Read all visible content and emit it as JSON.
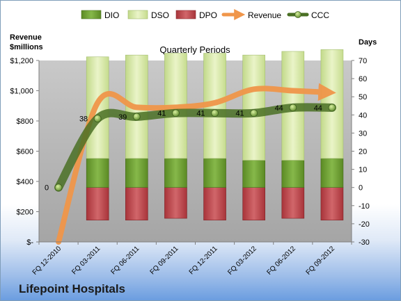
{
  "company": "Lifepoint Hospitals",
  "chart_data": {
    "type": "bar",
    "title": "Quarterly Periods",
    "y_left_label_lines": [
      "Revenue",
      "$millions"
    ],
    "y_right_label": "Days",
    "y_left_range": [
      0,
      1200
    ],
    "y_left_ticks": [
      "$-",
      "$200",
      "$400",
      "$600",
      "$800",
      "$1,000",
      "$1,200"
    ],
    "y_right_range": [
      -30,
      70
    ],
    "y_right_ticks": [
      "-30",
      "-20",
      "-10",
      "0",
      "10",
      "20",
      "30",
      "40",
      "50",
      "60",
      "70"
    ],
    "categories": [
      "FQ 12-2010",
      "FQ 03-2011",
      "FQ 06-2011",
      "FQ 09-2011",
      "FQ 12-2011",
      "FQ 03-2012",
      "FQ 06-2012",
      "FQ 09-2012"
    ],
    "legend_position": "top",
    "grid": false,
    "series": [
      {
        "name": "DIO",
        "type": "stacked-bar",
        "axis": "right",
        "color": "#6a9a2c",
        "values": [
          null,
          16,
          16,
          16,
          16,
          15,
          15,
          16
        ]
      },
      {
        "name": "DSO",
        "type": "stacked-bar",
        "axis": "right",
        "color": "#d7e8a6",
        "values": [
          null,
          56,
          57,
          58,
          58,
          58,
          60,
          60
        ]
      },
      {
        "name": "DPO",
        "type": "stacked-bar",
        "axis": "right",
        "color": "#c0464b",
        "values": [
          null,
          -18,
          -18,
          -17,
          -18,
          -18,
          -17,
          -18
        ]
      },
      {
        "name": "Revenue",
        "type": "line",
        "axis": "left",
        "color": "#f0964a",
        "values": [
          0,
          920,
          890,
          890,
          920,
          1010,
          1000,
          990
        ]
      },
      {
        "name": "CCC",
        "type": "line",
        "axis": "right",
        "color": "#4a7024",
        "values": [
          0,
          38,
          39,
          41,
          41,
          41,
          44,
          44
        ],
        "labels": [
          "0",
          "38",
          "39",
          "41",
          "41",
          "41",
          "44",
          "44"
        ]
      }
    ]
  }
}
